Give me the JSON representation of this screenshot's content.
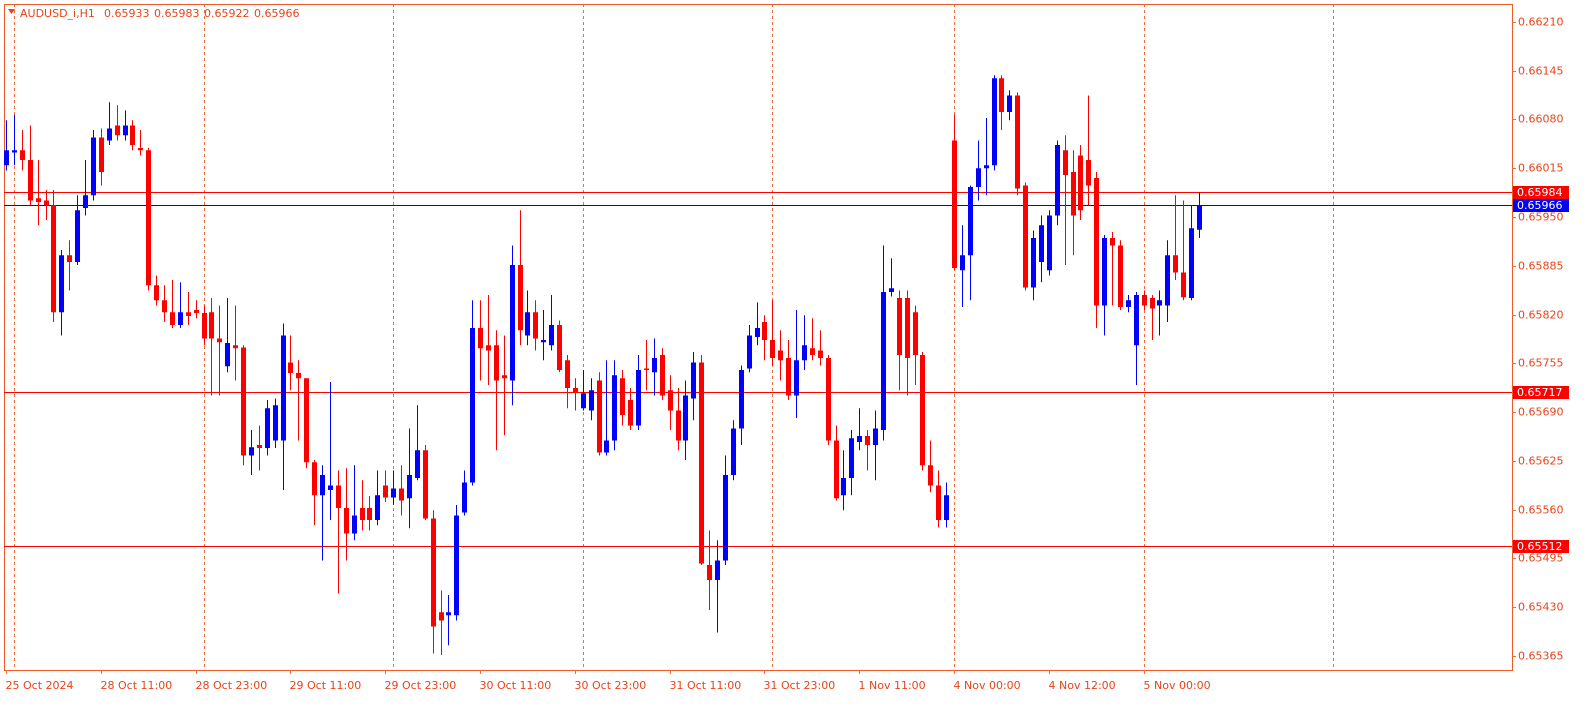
{
  "chart_data": {
    "type": "candlestick",
    "title": "AUDUSD_i,H1",
    "up_color": "#0000ff",
    "down_color": "#ff0000",
    "categories": [
      "25 Oct 2024",
      null,
      null,
      null,
      null,
      null,
      null,
      null,
      null,
      null,
      null,
      null,
      "28 Oct 11:00",
      null,
      null,
      null,
      null,
      null,
      null,
      null,
      null,
      null,
      null,
      null,
      "28 Oct 23:00",
      null,
      null,
      null,
      null,
      null,
      null,
      null,
      null,
      null,
      null,
      null,
      "29 Oct 11:00",
      null,
      null,
      null,
      null,
      null,
      null,
      null,
      null,
      null,
      null,
      null,
      "29 Oct 23:00",
      null,
      null,
      null,
      null,
      null,
      null,
      null,
      null,
      null,
      null,
      null,
      "30 Oct 11:00",
      null,
      null,
      null,
      null,
      null,
      null,
      null,
      null,
      null,
      null,
      null,
      "30 Oct 23:00",
      null,
      null,
      null,
      null,
      null,
      null,
      null,
      null,
      null,
      null,
      null,
      "31 Oct 11:00",
      null,
      null,
      null,
      null,
      null,
      null,
      null,
      null,
      null,
      null,
      null,
      "31 Oct 23:00",
      null,
      null,
      null,
      null,
      null,
      null,
      null,
      null,
      null,
      null,
      null,
      "1 Nov 11:00",
      null,
      null,
      null,
      null,
      null,
      null,
      null,
      null,
      null,
      null,
      null,
      "4 Nov 00:00",
      null,
      null,
      null,
      null,
      null,
      null,
      null,
      null,
      null,
      null,
      null,
      "4 Nov 12:00",
      null,
      null,
      null,
      null,
      null,
      null,
      null,
      null,
      null,
      null,
      null,
      "5 Nov 00:00",
      null,
      null,
      null,
      null,
      null,
      null,
      null
    ],
    "open": [
      0.66019,
      0.66036,
      0.66039,
      0.66026,
      0.65975,
      0.65972,
      0.65966,
      0.65823,
      0.65899,
      0.6589,
      0.65962,
      0.65979,
      0.66056,
      0.66052,
      0.66072,
      0.66059,
      0.66072,
      0.66042,
      0.66039,
      0.65859,
      0.65839,
      0.65823,
      0.65806,
      0.65823,
      0.65826,
      0.65822,
      0.65823,
      0.65788,
      0.65751,
      0.65779,
      0.65776,
      0.65632,
      0.65646,
      0.65642,
      0.65652,
      0.65652,
      0.65756,
      0.65742,
      0.65735,
      0.65623,
      0.65579,
      0.65586,
      0.65592,
      0.65562,
      0.65528,
      0.65562,
      0.65562,
      0.65546,
      0.65592,
      0.65576,
      0.65588,
      0.65575,
      0.65602,
      0.65639,
      0.65548,
      0.65423,
      0.65419,
      0.65419,
      0.65556,
      0.65596,
      0.65802,
      0.65779,
      0.65779,
      0.65739,
      0.65732,
      0.65886,
      0.65792,
      0.65823,
      0.65783,
      0.65779,
      0.65806,
      0.65759,
      0.65722,
      0.65695,
      0.65692,
      0.65732,
      0.65636,
      0.65652,
      0.65735,
      0.65706,
      0.65672,
      0.65748,
      0.65743,
      0.65766,
      0.65719,
      0.65692,
      0.65652,
      0.65708,
      0.65756,
      0.65486,
      0.65466,
      0.65492,
      0.65606,
      0.65668,
      0.65748,
      0.6579,
      0.6581,
      0.65786,
      0.65772,
      0.65762,
      0.65712,
      0.65759,
      0.65775,
      0.65772,
      0.65762,
      0.65652,
      0.65579,
      0.65602,
      0.6565,
      0.65658,
      0.65646,
      0.65666,
      0.6585,
      0.65842,
      0.65842,
      0.65823,
      0.65766,
      0.65619,
      0.65592,
      0.65546,
      0.66052,
      0.65879,
      0.65899,
      0.6599,
      0.66015,
      0.66019,
      0.66135,
      0.6609,
      0.66112,
      0.65992,
      0.65856,
      0.6589,
      0.65879,
      0.65952,
      0.66039,
      0.6601,
      0.66032,
      0.66026,
      0.66002,
      0.65832,
      0.65922,
      0.65912,
      0.6583,
      0.65779,
      0.65846,
      0.65842,
      0.65832,
      0.65832,
      0.65899,
      0.65876,
      0.65842,
      0.65933
    ],
    "high": [
      0.66079,
      0.66086,
      0.66066,
      0.66072,
      0.66026,
      0.65986,
      0.65986,
      0.65906,
      0.65919,
      0.65979,
      0.66026,
      0.66066,
      0.66068,
      0.66103,
      0.66099,
      0.66092,
      0.66079,
      0.66066,
      0.66042,
      0.65872,
      0.65859,
      0.65866,
      0.65863,
      0.6585,
      0.65839,
      0.65832,
      0.65842,
      0.65832,
      0.65842,
      0.65832,
      0.65779,
      0.65666,
      0.65672,
      0.65706,
      0.65708,
      0.65808,
      0.65792,
      0.65759,
      0.65735,
      0.65626,
      0.65619,
      0.6573,
      0.65612,
      0.65615,
      0.65619,
      0.65599,
      0.65578,
      0.65612,
      0.65612,
      0.65612,
      0.65619,
      0.65668,
      0.65699,
      0.65646,
      0.65559,
      0.65452,
      0.65446,
      0.65566,
      0.65612,
      0.65839,
      0.65839,
      0.65846,
      0.65799,
      0.65792,
      0.65912,
      0.65959,
      0.65852,
      0.65839,
      0.65826,
      0.65846,
      0.65812,
      0.65766,
      0.65735,
      0.65746,
      0.65735,
      0.65743,
      0.65759,
      0.65759,
      0.65746,
      0.65722,
      0.65766,
      0.65786,
      0.65788,
      0.65775,
      0.65739,
      0.65722,
      0.65732,
      0.6577,
      0.65766,
      0.65532,
      0.65519,
      0.65632,
      0.65679,
      0.65752,
      0.65806,
      0.65836,
      0.65819,
      0.65839,
      0.65799,
      0.65786,
      0.65826,
      0.65819,
      0.65815,
      0.65799,
      0.65766,
      0.65672,
      0.65639,
      0.65666,
      0.65695,
      0.65666,
      0.65692,
      0.65912,
      0.65895,
      0.65852,
      0.65852,
      0.65832,
      0.6577,
      0.65652,
      0.65612,
      0.65596,
      0.66086,
      0.65939,
      0.65992,
      0.66052,
      0.66082,
      0.66139,
      0.66139,
      0.66119,
      0.66116,
      0.65996,
      0.65932,
      0.65952,
      0.65959,
      0.66052,
      0.66059,
      0.66039,
      0.66046,
      0.66112,
      0.6601,
      0.65926,
      0.6593,
      0.65919,
      0.65846,
      0.6585,
      0.65852,
      0.65846,
      0.65852,
      0.65919,
      0.65979,
      0.65972,
      0.65966,
      0.65983
    ],
    "low": [
      0.66012,
      0.66019,
      0.66012,
      0.65966,
      0.65939,
      0.65946,
      0.6581,
      0.65792,
      0.65852,
      0.65886,
      0.65952,
      0.65972,
      0.65992,
      0.66046,
      0.66052,
      0.66052,
      0.66039,
      0.66032,
      0.65852,
      0.65832,
      0.6581,
      0.65802,
      0.65802,
      0.65806,
      0.65815,
      0.65779,
      0.65712,
      0.65712,
      0.65743,
      0.65732,
      0.65619,
      0.65606,
      0.65612,
      0.65632,
      0.65642,
      0.65586,
      0.65719,
      0.65652,
      0.65615,
      0.65539,
      0.65492,
      0.65546,
      0.65448,
      0.65492,
      0.65519,
      0.65532,
      0.65532,
      0.65539,
      0.6557,
      0.65566,
      0.65552,
      0.65535,
      0.65599,
      0.65546,
      0.65368,
      0.65366,
      0.65379,
      0.65412,
      0.65552,
      0.65592,
      0.65732,
      0.65726,
      0.65639,
      0.65659,
      0.65699,
      0.65779,
      0.65779,
      0.65772,
      0.65759,
      0.65772,
      0.65743,
      0.65695,
      0.65692,
      0.65692,
      0.65679,
      0.65632,
      0.65632,
      0.65639,
      0.65672,
      0.65666,
      0.65666,
      0.65719,
      0.65712,
      0.65706,
      0.65666,
      0.65639,
      0.65626,
      0.65679,
      0.65486,
      0.65426,
      0.65396,
      0.65486,
      0.65599,
      0.65646,
      0.65743,
      0.65779,
      0.65759,
      0.65752,
      0.65732,
      0.65706,
      0.65682,
      0.65746,
      0.65759,
      0.65752,
      0.65646,
      0.65572,
      0.65559,
      0.65579,
      0.65639,
      0.65612,
      0.65599,
      0.65652,
      0.65844,
      0.65719,
      0.65712,
      0.65726,
      0.65612,
      0.65583,
      0.65536,
      0.65536,
      0.65879,
      0.6583,
      0.65839,
      0.65972,
      0.65979,
      0.66012,
      0.66066,
      0.66079,
      0.65979,
      0.65852,
      0.65839,
      0.65863,
      0.65872,
      0.65939,
      0.65886,
      0.65899,
      0.65946,
      0.65966,
      0.65802,
      0.65792,
      0.65832,
      0.65826,
      0.65823,
      0.65726,
      0.65826,
      0.65786,
      0.65792,
      0.6581,
      0.65866,
      0.65839,
      0.65839,
      0.65922
    ],
    "close": [
      0.66039,
      0.66039,
      0.66026,
      0.65972,
      0.6597,
      0.65966,
      0.65823,
      0.65899,
      0.6589,
      0.65959,
      0.65979,
      0.66056,
      0.6601,
      0.66068,
      0.66059,
      0.66072,
      0.66046,
      0.66039,
      0.65859,
      0.65839,
      0.65823,
      0.65806,
      0.65823,
      0.65818,
      0.65822,
      0.65788,
      0.65788,
      0.65783,
      0.65782,
      0.65775,
      0.65632,
      0.65643,
      0.65642,
      0.65695,
      0.65699,
      0.65792,
      0.65742,
      0.65735,
      0.65623,
      0.65579,
      0.65606,
      0.65592,
      0.65562,
      0.65528,
      0.65552,
      0.65546,
      0.65546,
      0.65579,
      0.65576,
      0.65588,
      0.65572,
      0.65606,
      0.65639,
      0.65548,
      0.65404,
      0.65412,
      0.65423,
      0.65552,
      0.65596,
      0.65802,
      0.65775,
      0.65772,
      0.65732,
      0.65735,
      0.65886,
      0.65799,
      0.65823,
      0.65788,
      0.65786,
      0.65806,
      0.65746,
      0.65722,
      0.65716,
      0.65715,
      0.65719,
      0.65636,
      0.65652,
      0.65739,
      0.65686,
      0.65672,
      0.65746,
      0.65746,
      0.65762,
      0.65712,
      0.65692,
      0.65652,
      0.65712,
      0.65756,
      0.65488,
      0.65466,
      0.65492,
      0.65606,
      0.65668,
      0.65746,
      0.65792,
      0.65802,
      0.65786,
      0.65762,
      0.65759,
      0.65712,
      0.65759,
      0.65779,
      0.65766,
      0.65762,
      0.65652,
      0.65575,
      0.65602,
      0.65655,
      0.65658,
      0.65646,
      0.65668,
      0.6585,
      0.65855,
      0.65766,
      0.65762,
      0.65766,
      0.65619,
      0.65592,
      0.65546,
      0.65579,
      0.65882,
      0.65899,
      0.6599,
      0.66015,
      0.66019,
      0.66135,
      0.6609,
      0.66112,
      0.65988,
      0.65856,
      0.65922,
      0.65939,
      0.65952,
      0.66046,
      0.66006,
      0.65952,
      0.65959,
      0.65992,
      0.65832,
      0.65922,
      0.65912,
      0.6583,
      0.65839,
      0.65846,
      0.65832,
      0.65828,
      0.65839,
      0.65899,
      0.65876,
      0.65843,
      0.65935,
      0.65966
    ],
    "ylim": [
      0.65346,
      0.66234
    ],
    "yticks": [
      {
        "value": 0.6621,
        "label": "0.66210"
      },
      0.66145,
      {
        "value": 0.6608,
        "label": "0.66080"
      },
      0.66015,
      {
        "value": 0.6595,
        "label": "0.65950"
      },
      0.65885,
      {
        "value": 0.6582,
        "label": "0.65820"
      },
      0.65755,
      {
        "value": 0.6569,
        "label": "0.65690"
      },
      0.65625,
      {
        "value": 0.6556,
        "label": "0.65560"
      },
      0.65495,
      {
        "value": 0.6543,
        "label": "0.65430"
      },
      0.65365
    ],
    "hlines": [
      {
        "value": 0.65984,
        "color": "#ff0000"
      },
      {
        "value": 0.65966,
        "color": "#0000ff"
      },
      {
        "value": 0.65717,
        "color": "#ff0000"
      },
      {
        "value": 0.65512,
        "color": "#ff0000"
      }
    ]
  }
}
